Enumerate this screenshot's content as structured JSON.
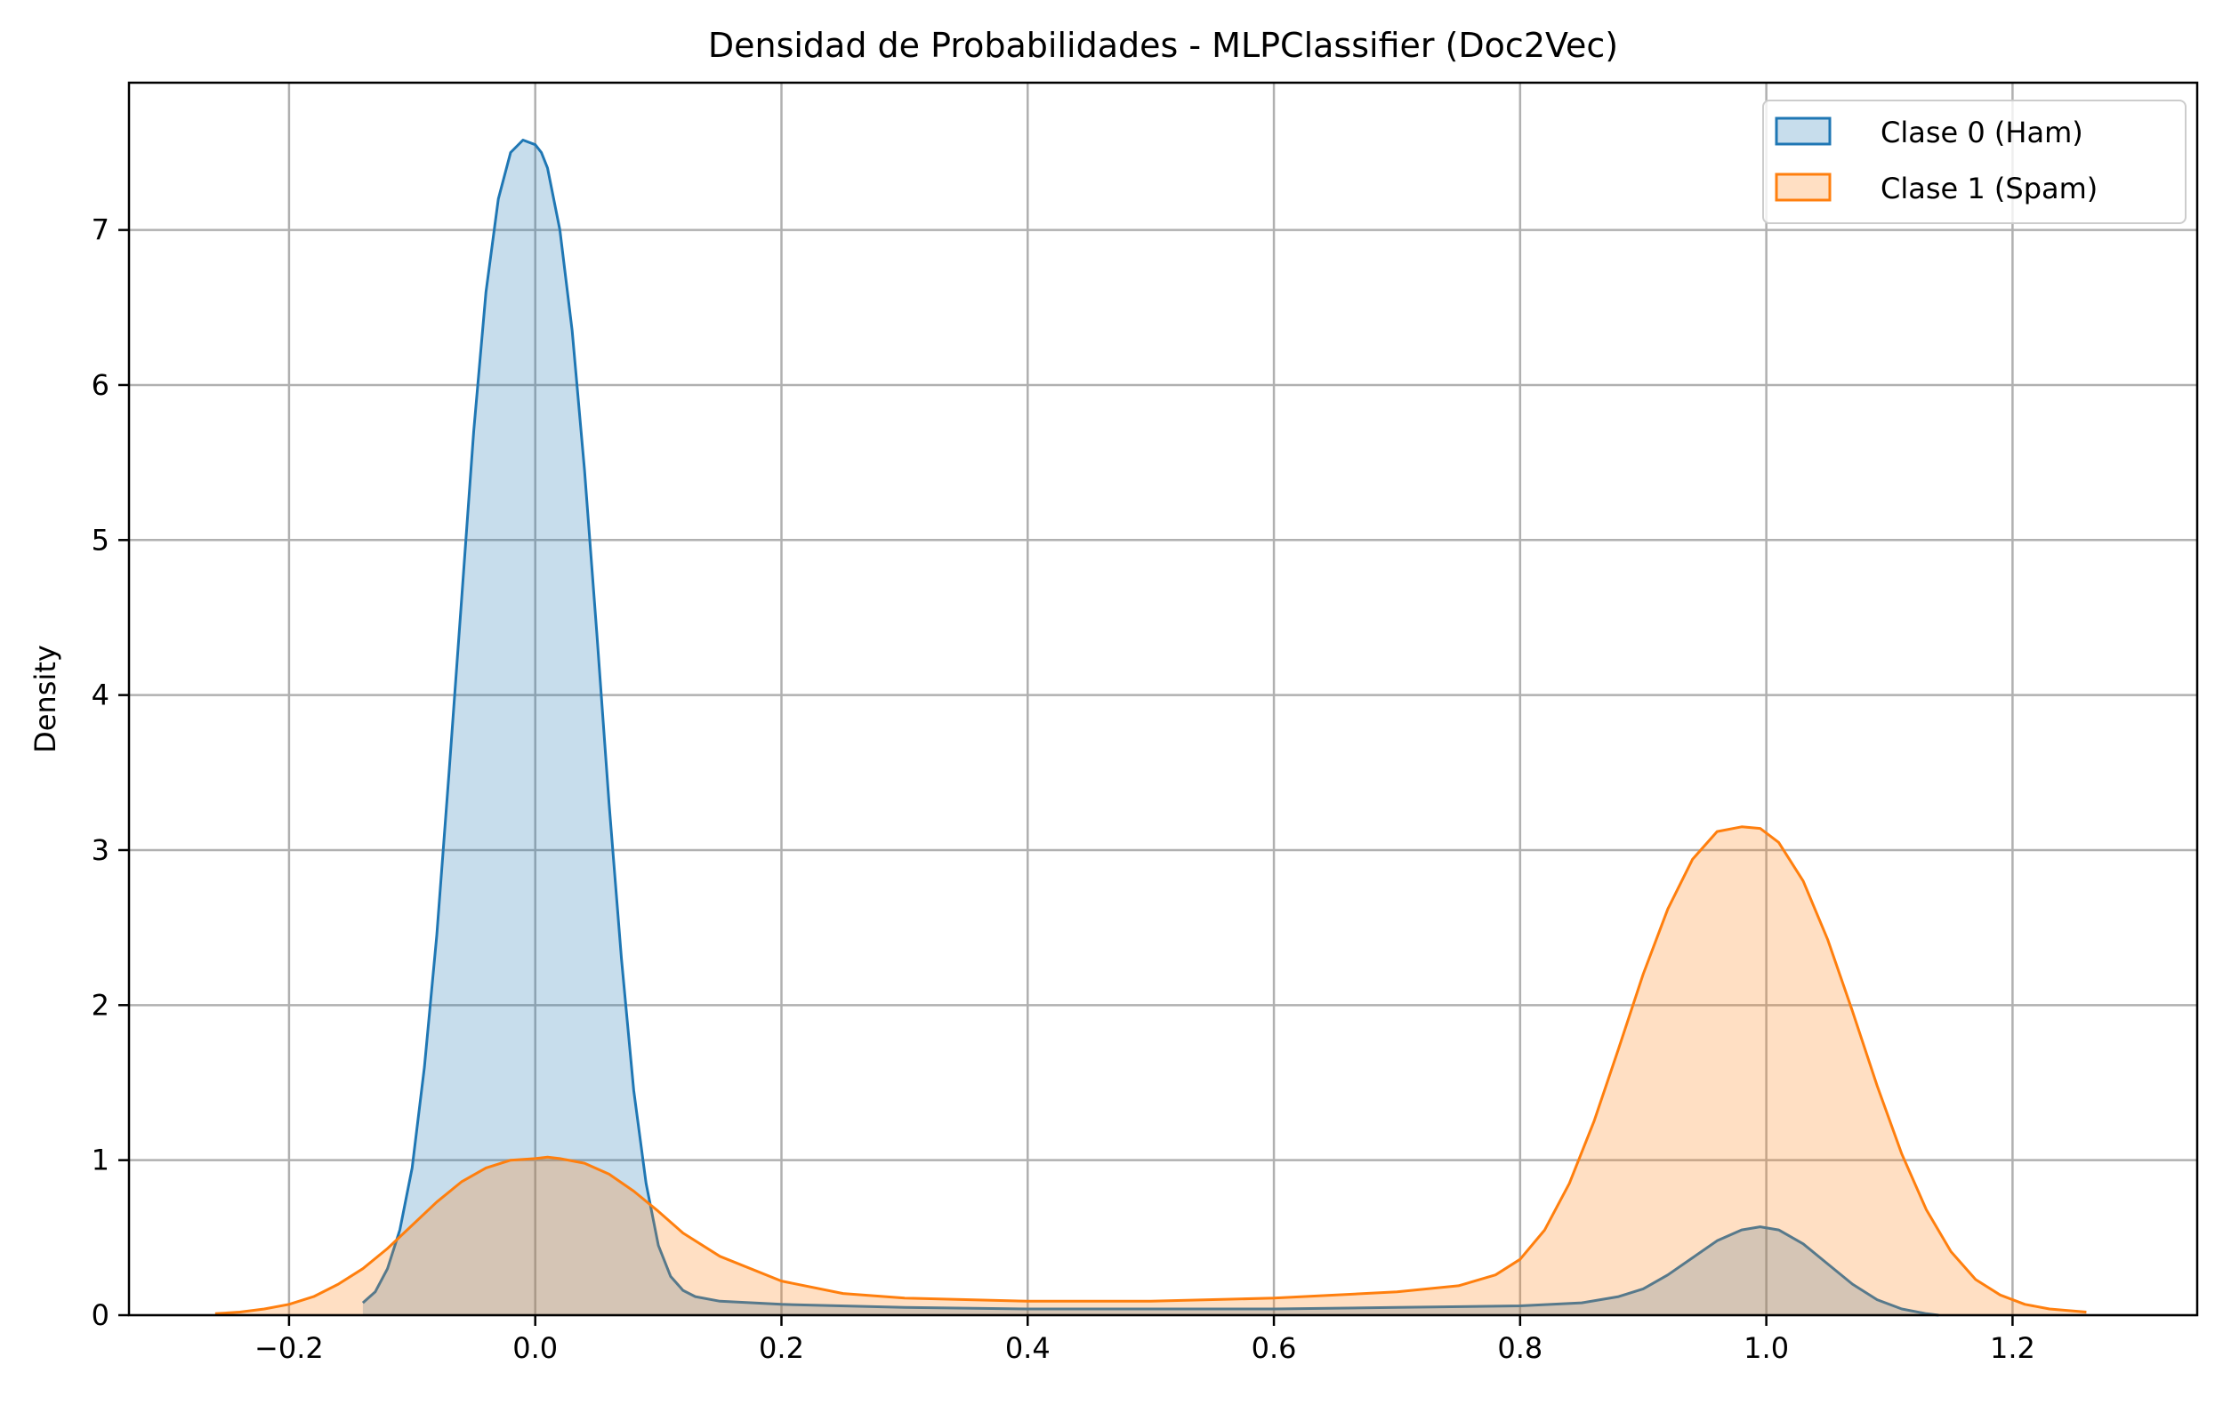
{
  "chart_data": {
    "type": "area",
    "title": "Densidad de Probabilidades - MLPClassifier (Doc2Vec)",
    "xlabel": "",
    "ylabel": "Density",
    "xlim": [
      -0.33,
      1.35
    ],
    "ylim": [
      0,
      7.95
    ],
    "xticks": [
      -0.2,
      0.0,
      0.2,
      0.4,
      0.6,
      0.8,
      1.0,
      1.2
    ],
    "xtick_labels": [
      "−0.2",
      "0.0",
      "0.2",
      "0.4",
      "0.6",
      "0.8",
      "1.0",
      "1.2"
    ],
    "yticks": [
      0,
      1,
      2,
      3,
      4,
      5,
      6,
      7
    ],
    "ytick_labels": [
      "0",
      "1",
      "2",
      "3",
      "4",
      "5",
      "6",
      "7"
    ],
    "grid": true,
    "legend_position": "top-right",
    "series": [
      {
        "name": "Clase 0 (Ham)",
        "color": "#1f77b4",
        "fill_opacity": 0.25,
        "x": [
          -0.14,
          -0.13,
          -0.12,
          -0.11,
          -0.1,
          -0.09,
          -0.08,
          -0.07,
          -0.06,
          -0.05,
          -0.04,
          -0.03,
          -0.02,
          -0.01,
          0.0,
          0.005,
          0.01,
          0.02,
          0.03,
          0.04,
          0.05,
          0.06,
          0.07,
          0.08,
          0.09,
          0.1,
          0.11,
          0.12,
          0.13,
          0.15,
          0.2,
          0.3,
          0.4,
          0.5,
          0.6,
          0.7,
          0.8,
          0.85,
          0.88,
          0.9,
          0.92,
          0.94,
          0.96,
          0.98,
          0.995,
          1.01,
          1.03,
          1.05,
          1.07,
          1.09,
          1.11,
          1.13,
          1.14
        ],
        "y": [
          0.08,
          0.15,
          0.3,
          0.55,
          0.95,
          1.6,
          2.45,
          3.5,
          4.6,
          5.7,
          6.6,
          7.2,
          7.5,
          7.58,
          7.55,
          7.5,
          7.4,
          7.0,
          6.35,
          5.45,
          4.4,
          3.3,
          2.3,
          1.45,
          0.85,
          0.45,
          0.25,
          0.16,
          0.12,
          0.09,
          0.07,
          0.05,
          0.04,
          0.04,
          0.04,
          0.05,
          0.06,
          0.08,
          0.12,
          0.17,
          0.26,
          0.37,
          0.48,
          0.55,
          0.57,
          0.55,
          0.46,
          0.33,
          0.2,
          0.1,
          0.04,
          0.01,
          0.0
        ]
      },
      {
        "name": "Clase 1 (Spam)",
        "color": "#ff7f0e",
        "fill_opacity": 0.25,
        "x": [
          -0.26,
          -0.24,
          -0.22,
          -0.2,
          -0.18,
          -0.16,
          -0.14,
          -0.12,
          -0.1,
          -0.08,
          -0.06,
          -0.04,
          -0.02,
          0.0,
          0.01,
          0.02,
          0.04,
          0.06,
          0.08,
          0.1,
          0.12,
          0.15,
          0.2,
          0.25,
          0.3,
          0.4,
          0.5,
          0.6,
          0.7,
          0.75,
          0.78,
          0.8,
          0.82,
          0.84,
          0.86,
          0.88,
          0.9,
          0.92,
          0.94,
          0.96,
          0.98,
          0.995,
          1.01,
          1.03,
          1.05,
          1.07,
          1.09,
          1.11,
          1.13,
          1.15,
          1.17,
          1.19,
          1.21,
          1.23,
          1.26
        ],
        "y": [
          0.01,
          0.02,
          0.04,
          0.07,
          0.12,
          0.2,
          0.3,
          0.43,
          0.58,
          0.73,
          0.86,
          0.95,
          1.0,
          1.01,
          1.02,
          1.01,
          0.98,
          0.91,
          0.8,
          0.67,
          0.53,
          0.38,
          0.22,
          0.14,
          0.11,
          0.09,
          0.09,
          0.11,
          0.15,
          0.19,
          0.26,
          0.36,
          0.55,
          0.85,
          1.25,
          1.72,
          2.2,
          2.62,
          2.94,
          3.12,
          3.15,
          3.14,
          3.05,
          2.8,
          2.42,
          1.96,
          1.48,
          1.04,
          0.68,
          0.41,
          0.23,
          0.13,
          0.07,
          0.04,
          0.02
        ]
      }
    ]
  }
}
